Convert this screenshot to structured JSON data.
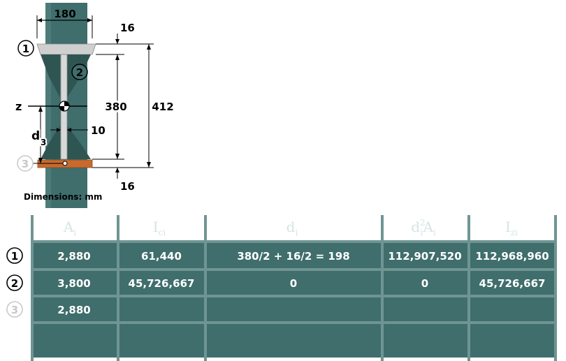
{
  "diagram": {
    "dim_width": "180",
    "dim_flange_top": "16",
    "dim_web_height": "380",
    "dim_total_height": "412",
    "dim_web_thickness": "10",
    "dim_flange_bottom": "16",
    "axis_label": "z",
    "d3_label": "d",
    "d3_sub": "3",
    "part1": "1",
    "part2": "2",
    "part3": "3",
    "dimensions_note": "Dimensions: mm"
  },
  "table": {
    "headers": {
      "a": "A",
      "a_sub": "i",
      "ic": "I",
      "ic_sub": "ci",
      "d": "d",
      "d_sub": "i",
      "d2a": "d",
      "d2a_sup": "2",
      "d2a_sub": "i",
      "d2a_tail": "A",
      "d2a_tail_sub": "i",
      "iz": "I",
      "iz_sub": "zi"
    },
    "rows": [
      {
        "label": "1",
        "a": "2,880",
        "ic": "61,440",
        "d": "380/2 + 16/2 = 198",
        "d2a": "112,907,520",
        "iz": "112,968,960"
      },
      {
        "label": "2",
        "a": "3,800",
        "ic": "45,726,667",
        "d": "0",
        "d2a": "0",
        "iz": "45,726,667"
      },
      {
        "label": "3",
        "a": "2,880",
        "ic": "",
        "d": "",
        "d2a": "",
        "iz": ""
      }
    ]
  },
  "colors": {
    "teal": "#3f6e6c",
    "teal_dark": "#2f5553",
    "teal_light": "#6f9593",
    "flange_top": "#c8c8c8",
    "flange_bottom": "#c86a2e"
  }
}
